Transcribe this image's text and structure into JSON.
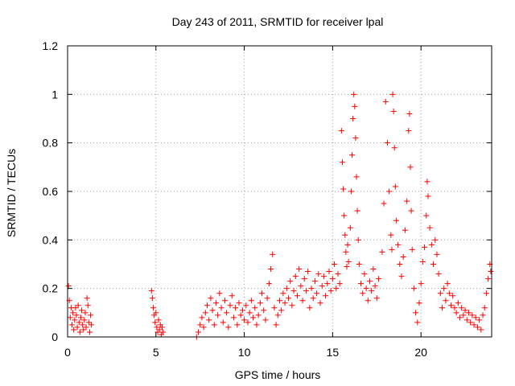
{
  "chart_data": {
    "type": "scatter",
    "title": "Day 243 of 2011, SRMTID for receiver lpal",
    "xlabel": "GPS time / hours",
    "ylabel": "SRMTID / TECUs",
    "xlim": [
      0,
      24
    ],
    "ylim": [
      0,
      1.2
    ],
    "xticks": [
      0,
      5,
      10,
      15,
      20
    ],
    "xtick_labels": [
      "0",
      "5",
      "10",
      "15",
      "20"
    ],
    "yticks": [
      0,
      0.2,
      0.4,
      0.6,
      0.8,
      1.0,
      1.2
    ],
    "ytick_labels": [
      "0",
      "0.2",
      "0.4",
      "0.6",
      "0.8",
      "1",
      "1.2"
    ],
    "grid": true,
    "marker": "plus",
    "color": "#ff0000",
    "series": [
      {
        "name": "SRMTID",
        "points": [
          [
            0.05,
            0.21
          ],
          [
            0.1,
            0.15
          ],
          [
            0.15,
            0.08
          ],
          [
            0.2,
            0.12
          ],
          [
            0.25,
            0.05
          ],
          [
            0.3,
            0.1
          ],
          [
            0.35,
            0.03
          ],
          [
            0.4,
            0.07
          ],
          [
            0.45,
            0.12
          ],
          [
            0.5,
            0.09
          ],
          [
            0.55,
            0.04
          ],
          [
            0.6,
            0.13
          ],
          [
            0.65,
            0.06
          ],
          [
            0.7,
            0.02
          ],
          [
            0.75,
            0.08
          ],
          [
            0.8,
            0.11
          ],
          [
            0.85,
            0.05
          ],
          [
            0.9,
            0.03
          ],
          [
            0.95,
            0.07
          ],
          [
            1.0,
            0.1
          ],
          [
            1.05,
            0.04
          ],
          [
            1.1,
            0.16
          ],
          [
            1.15,
            0.13
          ],
          [
            1.2,
            0.06
          ],
          [
            1.25,
            0.02
          ],
          [
            1.3,
            0.09
          ],
          [
            1.35,
            0.05
          ],
          [
            4.75,
            0.19
          ],
          [
            4.8,
            0.16
          ],
          [
            4.85,
            0.12
          ],
          [
            4.9,
            0.09
          ],
          [
            4.95,
            0.06
          ],
          [
            5.0,
            0.1
          ],
          [
            5.05,
            0.04
          ],
          [
            5.1,
            0.02
          ],
          [
            5.15,
            0.07
          ],
          [
            5.2,
            0.03
          ],
          [
            5.25,
            0.05
          ],
          [
            5.3,
            0.01
          ],
          [
            5.35,
            0.04
          ],
          [
            5.4,
            0.02
          ],
          [
            7.3,
            0.0
          ],
          [
            7.4,
            0.02
          ],
          [
            7.5,
            0.05
          ],
          [
            7.6,
            0.08
          ],
          [
            7.7,
            0.04
          ],
          [
            7.8,
            0.1
          ],
          [
            7.9,
            0.13
          ],
          [
            8.0,
            0.07
          ],
          [
            8.1,
            0.16
          ],
          [
            8.2,
            0.11
          ],
          [
            8.3,
            0.05
          ],
          [
            8.4,
            0.14
          ],
          [
            8.5,
            0.09
          ],
          [
            8.6,
            0.18
          ],
          [
            8.7,
            0.12
          ],
          [
            8.8,
            0.06
          ],
          [
            8.9,
            0.15
          ],
          [
            9.0,
            0.1
          ],
          [
            9.1,
            0.04
          ],
          [
            9.2,
            0.13
          ],
          [
            9.3,
            0.17
          ],
          [
            9.4,
            0.08
          ],
          [
            9.5,
            0.12
          ],
          [
            9.6,
            0.05
          ],
          [
            9.7,
            0.14
          ],
          [
            9.8,
            0.09
          ],
          [
            9.9,
            0.11
          ],
          [
            10.0,
            0.07
          ],
          [
            10.1,
            0.13
          ],
          [
            10.2,
            0.06
          ],
          [
            10.3,
            0.1
          ],
          [
            10.4,
            0.15
          ],
          [
            10.5,
            0.08
          ],
          [
            10.6,
            0.12
          ],
          [
            10.7,
            0.05
          ],
          [
            10.8,
            0.09
          ],
          [
            10.9,
            0.14
          ],
          [
            11.0,
            0.18
          ],
          [
            11.1,
            0.11
          ],
          [
            11.2,
            0.07
          ],
          [
            11.3,
            0.16
          ],
          [
            11.4,
            0.22
          ],
          [
            11.5,
            0.28
          ],
          [
            11.6,
            0.34
          ],
          [
            11.7,
            0.12
          ],
          [
            11.8,
            0.05
          ],
          [
            11.9,
            0.09
          ],
          [
            12.0,
            0.15
          ],
          [
            12.1,
            0.11
          ],
          [
            12.2,
            0.18
          ],
          [
            12.3,
            0.14
          ],
          [
            12.4,
            0.2
          ],
          [
            12.5,
            0.16
          ],
          [
            12.6,
            0.23
          ],
          [
            12.7,
            0.13
          ],
          [
            12.8,
            0.19
          ],
          [
            12.9,
            0.25
          ],
          [
            13.0,
            0.17
          ],
          [
            13.1,
            0.28
          ],
          [
            13.2,
            0.21
          ],
          [
            13.3,
            0.15
          ],
          [
            13.4,
            0.24
          ],
          [
            13.5,
            0.19
          ],
          [
            13.6,
            0.27
          ],
          [
            13.7,
            0.12
          ],
          [
            13.8,
            0.2
          ],
          [
            13.9,
            0.16
          ],
          [
            14.0,
            0.23
          ],
          [
            14.1,
            0.18
          ],
          [
            14.2,
            0.26
          ],
          [
            14.3,
            0.14
          ],
          [
            14.4,
            0.21
          ],
          [
            14.5,
            0.25
          ],
          [
            14.6,
            0.17
          ],
          [
            14.7,
            0.22
          ],
          [
            14.8,
            0.27
          ],
          [
            14.9,
            0.19
          ],
          [
            15.0,
            0.24
          ],
          [
            15.1,
            0.3
          ],
          [
            15.2,
            0.2
          ],
          [
            15.3,
            0.26
          ],
          [
            15.4,
            0.22
          ],
          [
            15.5,
            0.85
          ],
          [
            15.55,
            0.72
          ],
          [
            15.6,
            0.61
          ],
          [
            15.65,
            0.5
          ],
          [
            15.7,
            0.42
          ],
          [
            15.75,
            0.35
          ],
          [
            15.8,
            0.29
          ],
          [
            15.85,
            0.38
          ],
          [
            15.9,
            0.31
          ],
          [
            16.0,
            0.45
          ],
          [
            16.05,
            0.6
          ],
          [
            16.1,
            0.75
          ],
          [
            16.15,
            0.9
          ],
          [
            16.2,
            1.0
          ],
          [
            16.25,
            0.95
          ],
          [
            16.3,
            0.82
          ],
          [
            16.35,
            0.66
          ],
          [
            16.4,
            0.52
          ],
          [
            16.45,
            0.4
          ],
          [
            16.5,
            0.3
          ],
          [
            16.6,
            0.22
          ],
          [
            16.7,
            0.18
          ],
          [
            16.8,
            0.26
          ],
          [
            16.9,
            0.2
          ],
          [
            17.0,
            0.15
          ],
          [
            17.1,
            0.23
          ],
          [
            17.2,
            0.19
          ],
          [
            17.3,
            0.28
          ],
          [
            17.4,
            0.21
          ],
          [
            17.5,
            0.16
          ],
          [
            17.6,
            0.24
          ],
          [
            17.8,
            0.35
          ],
          [
            17.9,
            0.55
          ],
          [
            18.0,
            0.97
          ],
          [
            18.1,
            0.8
          ],
          [
            18.2,
            0.6
          ],
          [
            18.3,
            0.42
          ],
          [
            18.35,
            0.36
          ],
          [
            18.4,
            1.0
          ],
          [
            18.45,
            0.93
          ],
          [
            18.5,
            0.78
          ],
          [
            18.55,
            0.62
          ],
          [
            18.6,
            0.48
          ],
          [
            18.7,
            0.38
          ],
          [
            18.8,
            0.3
          ],
          [
            18.9,
            0.25
          ],
          [
            19.0,
            0.33
          ],
          [
            19.1,
            0.44
          ],
          [
            19.2,
            0.56
          ],
          [
            19.3,
            0.85
          ],
          [
            19.35,
            0.92
          ],
          [
            19.4,
            0.7
          ],
          [
            19.45,
            0.52
          ],
          [
            19.5,
            0.36
          ],
          [
            19.6,
            0.2
          ],
          [
            19.7,
            0.1
          ],
          [
            19.8,
            0.06
          ],
          [
            19.9,
            0.14
          ],
          [
            20.0,
            0.22
          ],
          [
            20.1,
            0.31
          ],
          [
            20.2,
            0.37
          ],
          [
            20.3,
            0.5
          ],
          [
            20.35,
            0.64
          ],
          [
            20.4,
            0.58
          ],
          [
            20.5,
            0.45
          ],
          [
            20.6,
            0.38
          ],
          [
            20.7,
            0.3
          ],
          [
            20.8,
            0.4
          ],
          [
            20.9,
            0.34
          ],
          [
            21.0,
            0.26
          ],
          [
            21.1,
            0.18
          ],
          [
            21.2,
            0.12
          ],
          [
            21.3,
            0.2
          ],
          [
            21.4,
            0.15
          ],
          [
            21.5,
            0.22
          ],
          [
            21.6,
            0.18
          ],
          [
            21.7,
            0.13
          ],
          [
            21.8,
            0.17
          ],
          [
            21.9,
            0.12
          ],
          [
            22.0,
            0.1
          ],
          [
            22.1,
            0.14
          ],
          [
            22.2,
            0.08
          ],
          [
            22.3,
            0.12
          ],
          [
            22.4,
            0.09
          ],
          [
            22.5,
            0.11
          ],
          [
            22.6,
            0.07
          ],
          [
            22.7,
            0.1
          ],
          [
            22.8,
            0.06
          ],
          [
            22.9,
            0.09
          ],
          [
            23.0,
            0.05
          ],
          [
            23.1,
            0.08
          ],
          [
            23.2,
            0.04
          ],
          [
            23.3,
            0.07
          ],
          [
            23.4,
            0.03
          ],
          [
            23.5,
            0.09
          ],
          [
            23.6,
            0.12
          ],
          [
            23.7,
            0.18
          ],
          [
            23.8,
            0.24
          ],
          [
            23.9,
            0.3
          ],
          [
            23.95,
            0.27
          ]
        ]
      }
    ]
  }
}
